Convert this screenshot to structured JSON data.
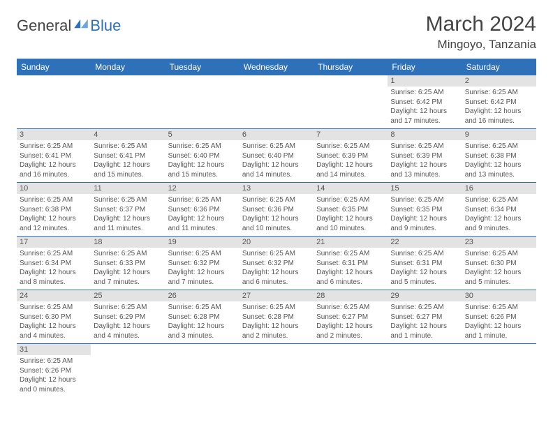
{
  "brand": {
    "part1": "General",
    "part2": "Blue"
  },
  "title": "March 2024",
  "location": "Mingoyo, Tanzania",
  "columns": [
    "Sunday",
    "Monday",
    "Tuesday",
    "Wednesday",
    "Thursday",
    "Friday",
    "Saturday"
  ],
  "colors": {
    "header_bg": "#2f71b8",
    "header_fg": "#ffffff",
    "daynum_bg": "#e3e3e3",
    "text": "#555555",
    "rule": "#2f71b8"
  },
  "weeks": [
    [
      null,
      null,
      null,
      null,
      null,
      {
        "n": "1",
        "sr": "Sunrise: 6:25 AM",
        "ss": "Sunset: 6:42 PM",
        "dl": "Daylight: 12 hours and 17 minutes."
      },
      {
        "n": "2",
        "sr": "Sunrise: 6:25 AM",
        "ss": "Sunset: 6:42 PM",
        "dl": "Daylight: 12 hours and 16 minutes."
      }
    ],
    [
      {
        "n": "3",
        "sr": "Sunrise: 6:25 AM",
        "ss": "Sunset: 6:41 PM",
        "dl": "Daylight: 12 hours and 16 minutes."
      },
      {
        "n": "4",
        "sr": "Sunrise: 6:25 AM",
        "ss": "Sunset: 6:41 PM",
        "dl": "Daylight: 12 hours and 15 minutes."
      },
      {
        "n": "5",
        "sr": "Sunrise: 6:25 AM",
        "ss": "Sunset: 6:40 PM",
        "dl": "Daylight: 12 hours and 15 minutes."
      },
      {
        "n": "6",
        "sr": "Sunrise: 6:25 AM",
        "ss": "Sunset: 6:40 PM",
        "dl": "Daylight: 12 hours and 14 minutes."
      },
      {
        "n": "7",
        "sr": "Sunrise: 6:25 AM",
        "ss": "Sunset: 6:39 PM",
        "dl": "Daylight: 12 hours and 14 minutes."
      },
      {
        "n": "8",
        "sr": "Sunrise: 6:25 AM",
        "ss": "Sunset: 6:39 PM",
        "dl": "Daylight: 12 hours and 13 minutes."
      },
      {
        "n": "9",
        "sr": "Sunrise: 6:25 AM",
        "ss": "Sunset: 6:38 PM",
        "dl": "Daylight: 12 hours and 13 minutes."
      }
    ],
    [
      {
        "n": "10",
        "sr": "Sunrise: 6:25 AM",
        "ss": "Sunset: 6:38 PM",
        "dl": "Daylight: 12 hours and 12 minutes."
      },
      {
        "n": "11",
        "sr": "Sunrise: 6:25 AM",
        "ss": "Sunset: 6:37 PM",
        "dl": "Daylight: 12 hours and 11 minutes."
      },
      {
        "n": "12",
        "sr": "Sunrise: 6:25 AM",
        "ss": "Sunset: 6:36 PM",
        "dl": "Daylight: 12 hours and 11 minutes."
      },
      {
        "n": "13",
        "sr": "Sunrise: 6:25 AM",
        "ss": "Sunset: 6:36 PM",
        "dl": "Daylight: 12 hours and 10 minutes."
      },
      {
        "n": "14",
        "sr": "Sunrise: 6:25 AM",
        "ss": "Sunset: 6:35 PM",
        "dl": "Daylight: 12 hours and 10 minutes."
      },
      {
        "n": "15",
        "sr": "Sunrise: 6:25 AM",
        "ss": "Sunset: 6:35 PM",
        "dl": "Daylight: 12 hours and 9 minutes."
      },
      {
        "n": "16",
        "sr": "Sunrise: 6:25 AM",
        "ss": "Sunset: 6:34 PM",
        "dl": "Daylight: 12 hours and 9 minutes."
      }
    ],
    [
      {
        "n": "17",
        "sr": "Sunrise: 6:25 AM",
        "ss": "Sunset: 6:34 PM",
        "dl": "Daylight: 12 hours and 8 minutes."
      },
      {
        "n": "18",
        "sr": "Sunrise: 6:25 AM",
        "ss": "Sunset: 6:33 PM",
        "dl": "Daylight: 12 hours and 7 minutes."
      },
      {
        "n": "19",
        "sr": "Sunrise: 6:25 AM",
        "ss": "Sunset: 6:32 PM",
        "dl": "Daylight: 12 hours and 7 minutes."
      },
      {
        "n": "20",
        "sr": "Sunrise: 6:25 AM",
        "ss": "Sunset: 6:32 PM",
        "dl": "Daylight: 12 hours and 6 minutes."
      },
      {
        "n": "21",
        "sr": "Sunrise: 6:25 AM",
        "ss": "Sunset: 6:31 PM",
        "dl": "Daylight: 12 hours and 6 minutes."
      },
      {
        "n": "22",
        "sr": "Sunrise: 6:25 AM",
        "ss": "Sunset: 6:31 PM",
        "dl": "Daylight: 12 hours and 5 minutes."
      },
      {
        "n": "23",
        "sr": "Sunrise: 6:25 AM",
        "ss": "Sunset: 6:30 PM",
        "dl": "Daylight: 12 hours and 5 minutes."
      }
    ],
    [
      {
        "n": "24",
        "sr": "Sunrise: 6:25 AM",
        "ss": "Sunset: 6:30 PM",
        "dl": "Daylight: 12 hours and 4 minutes."
      },
      {
        "n": "25",
        "sr": "Sunrise: 6:25 AM",
        "ss": "Sunset: 6:29 PM",
        "dl": "Daylight: 12 hours and 4 minutes."
      },
      {
        "n": "26",
        "sr": "Sunrise: 6:25 AM",
        "ss": "Sunset: 6:28 PM",
        "dl": "Daylight: 12 hours and 3 minutes."
      },
      {
        "n": "27",
        "sr": "Sunrise: 6:25 AM",
        "ss": "Sunset: 6:28 PM",
        "dl": "Daylight: 12 hours and 2 minutes."
      },
      {
        "n": "28",
        "sr": "Sunrise: 6:25 AM",
        "ss": "Sunset: 6:27 PM",
        "dl": "Daylight: 12 hours and 2 minutes."
      },
      {
        "n": "29",
        "sr": "Sunrise: 6:25 AM",
        "ss": "Sunset: 6:27 PM",
        "dl": "Daylight: 12 hours and 1 minute."
      },
      {
        "n": "30",
        "sr": "Sunrise: 6:25 AM",
        "ss": "Sunset: 6:26 PM",
        "dl": "Daylight: 12 hours and 1 minute."
      }
    ],
    [
      {
        "n": "31",
        "sr": "Sunrise: 6:25 AM",
        "ss": "Sunset: 6:26 PM",
        "dl": "Daylight: 12 hours and 0 minutes."
      },
      null,
      null,
      null,
      null,
      null,
      null
    ]
  ]
}
